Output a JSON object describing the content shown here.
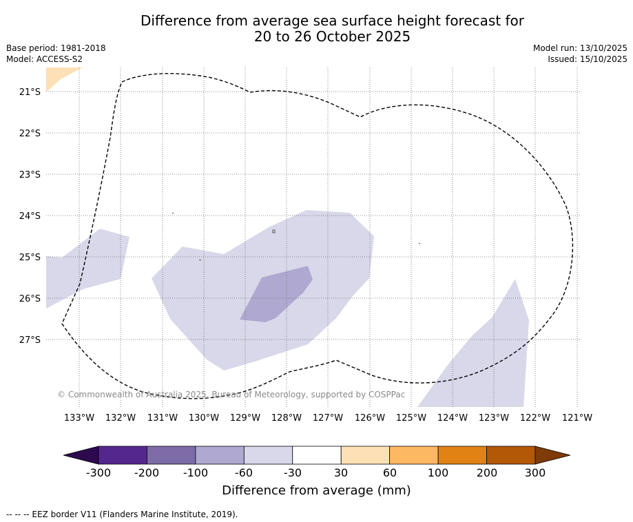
{
  "title_line1": "Difference from average sea surface height forecast for",
  "title_line2": "20 to 26 October 2025",
  "base_period": "Base period: 1981-2018",
  "model": "Model: ACCESS-S2",
  "model_run": "Model run: 13/10/2025",
  "issued": "Issued: 15/10/2025",
  "latitude_labels": [
    "21°S",
    "22°S",
    "23°S",
    "24°S",
    "25°S",
    "26°S",
    "27°S"
  ],
  "longitude_labels": [
    "133°W",
    "132°W",
    "131°W",
    "130°W",
    "129°W",
    "128°W",
    "127°W",
    "126°W",
    "125°W",
    "124°W",
    "123°W",
    "122°W",
    "121°W"
  ],
  "copyright": "© Commonwealth of Australia 2025, Bureau of Meteorology, supported by COSPPac",
  "colorbar": {
    "title": "Difference from average (mm)",
    "tick_labels": [
      "-300",
      "-200",
      "-100",
      "-60",
      "-30",
      "30",
      "60",
      "100",
      "200",
      "300"
    ],
    "colors": {
      "under": "#2d0a4e",
      "bins": [
        "#54278f",
        "#7d6ca8",
        "#afa8d0",
        "#d8d8ea",
        "#ffffff",
        "#fee0b6",
        "#fdb863",
        "#e08214",
        "#b35806"
      ],
      "over": "#7f3b08"
    }
  },
  "footnote": "--  --  -- EEZ border V11 (Flanders Marine Institute, 2019)."
}
